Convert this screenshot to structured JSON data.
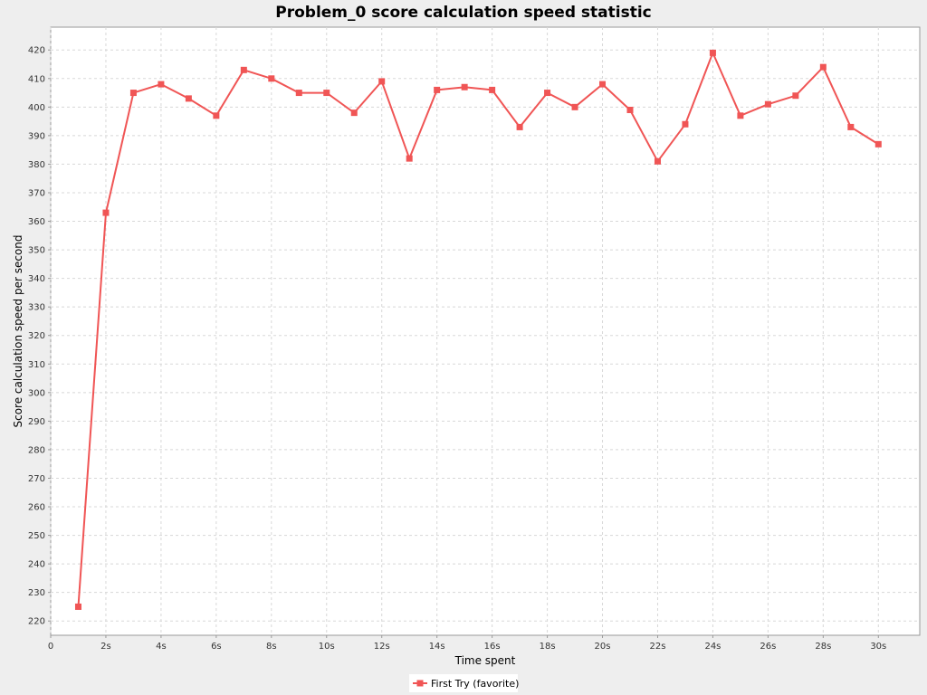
{
  "chart_data": {
    "type": "line",
    "title": "Problem_0 score calculation speed statistic",
    "xlabel": "Time spent",
    "ylabel": "Score calculation speed per second",
    "xlim": [
      0,
      31.5
    ],
    "ylim": [
      215,
      428
    ],
    "x_ticks": [
      {
        "value": 0,
        "label": "0"
      },
      {
        "value": 2,
        "label": "2s"
      },
      {
        "value": 4,
        "label": "4s"
      },
      {
        "value": 6,
        "label": "6s"
      },
      {
        "value": 8,
        "label": "8s"
      },
      {
        "value": 10,
        "label": "10s"
      },
      {
        "value": 12,
        "label": "12s"
      },
      {
        "value": 14,
        "label": "14s"
      },
      {
        "value": 16,
        "label": "16s"
      },
      {
        "value": 18,
        "label": "18s"
      },
      {
        "value": 20,
        "label": "20s"
      },
      {
        "value": 22,
        "label": "22s"
      },
      {
        "value": 24,
        "label": "24s"
      },
      {
        "value": 26,
        "label": "26s"
      },
      {
        "value": 28,
        "label": "28s"
      },
      {
        "value": 30,
        "label": "30s"
      }
    ],
    "y_ticks": [
      220,
      230,
      240,
      250,
      260,
      270,
      280,
      290,
      300,
      310,
      320,
      330,
      340,
      350,
      360,
      370,
      380,
      390,
      400,
      410,
      420
    ],
    "grid": true,
    "legend_position": "bottom-center",
    "series": [
      {
        "name": "First Try (favorite)",
        "color": "#f05555",
        "marker": "square",
        "x": [
          1,
          2,
          3,
          4,
          5,
          6,
          7,
          8,
          9,
          10,
          11,
          12,
          13,
          14,
          15,
          16,
          17,
          18,
          19,
          20,
          21,
          22,
          23,
          24,
          25,
          26,
          27,
          28,
          29,
          30
        ],
        "y": [
          225,
          363,
          405,
          408,
          403,
          397,
          413,
          410,
          405,
          405,
          398,
          409,
          382,
          406,
          407,
          406,
          393,
          405,
          400,
          408,
          399,
          381,
          394,
          419,
          397,
          401,
          404,
          414,
          393,
          387
        ]
      }
    ]
  }
}
